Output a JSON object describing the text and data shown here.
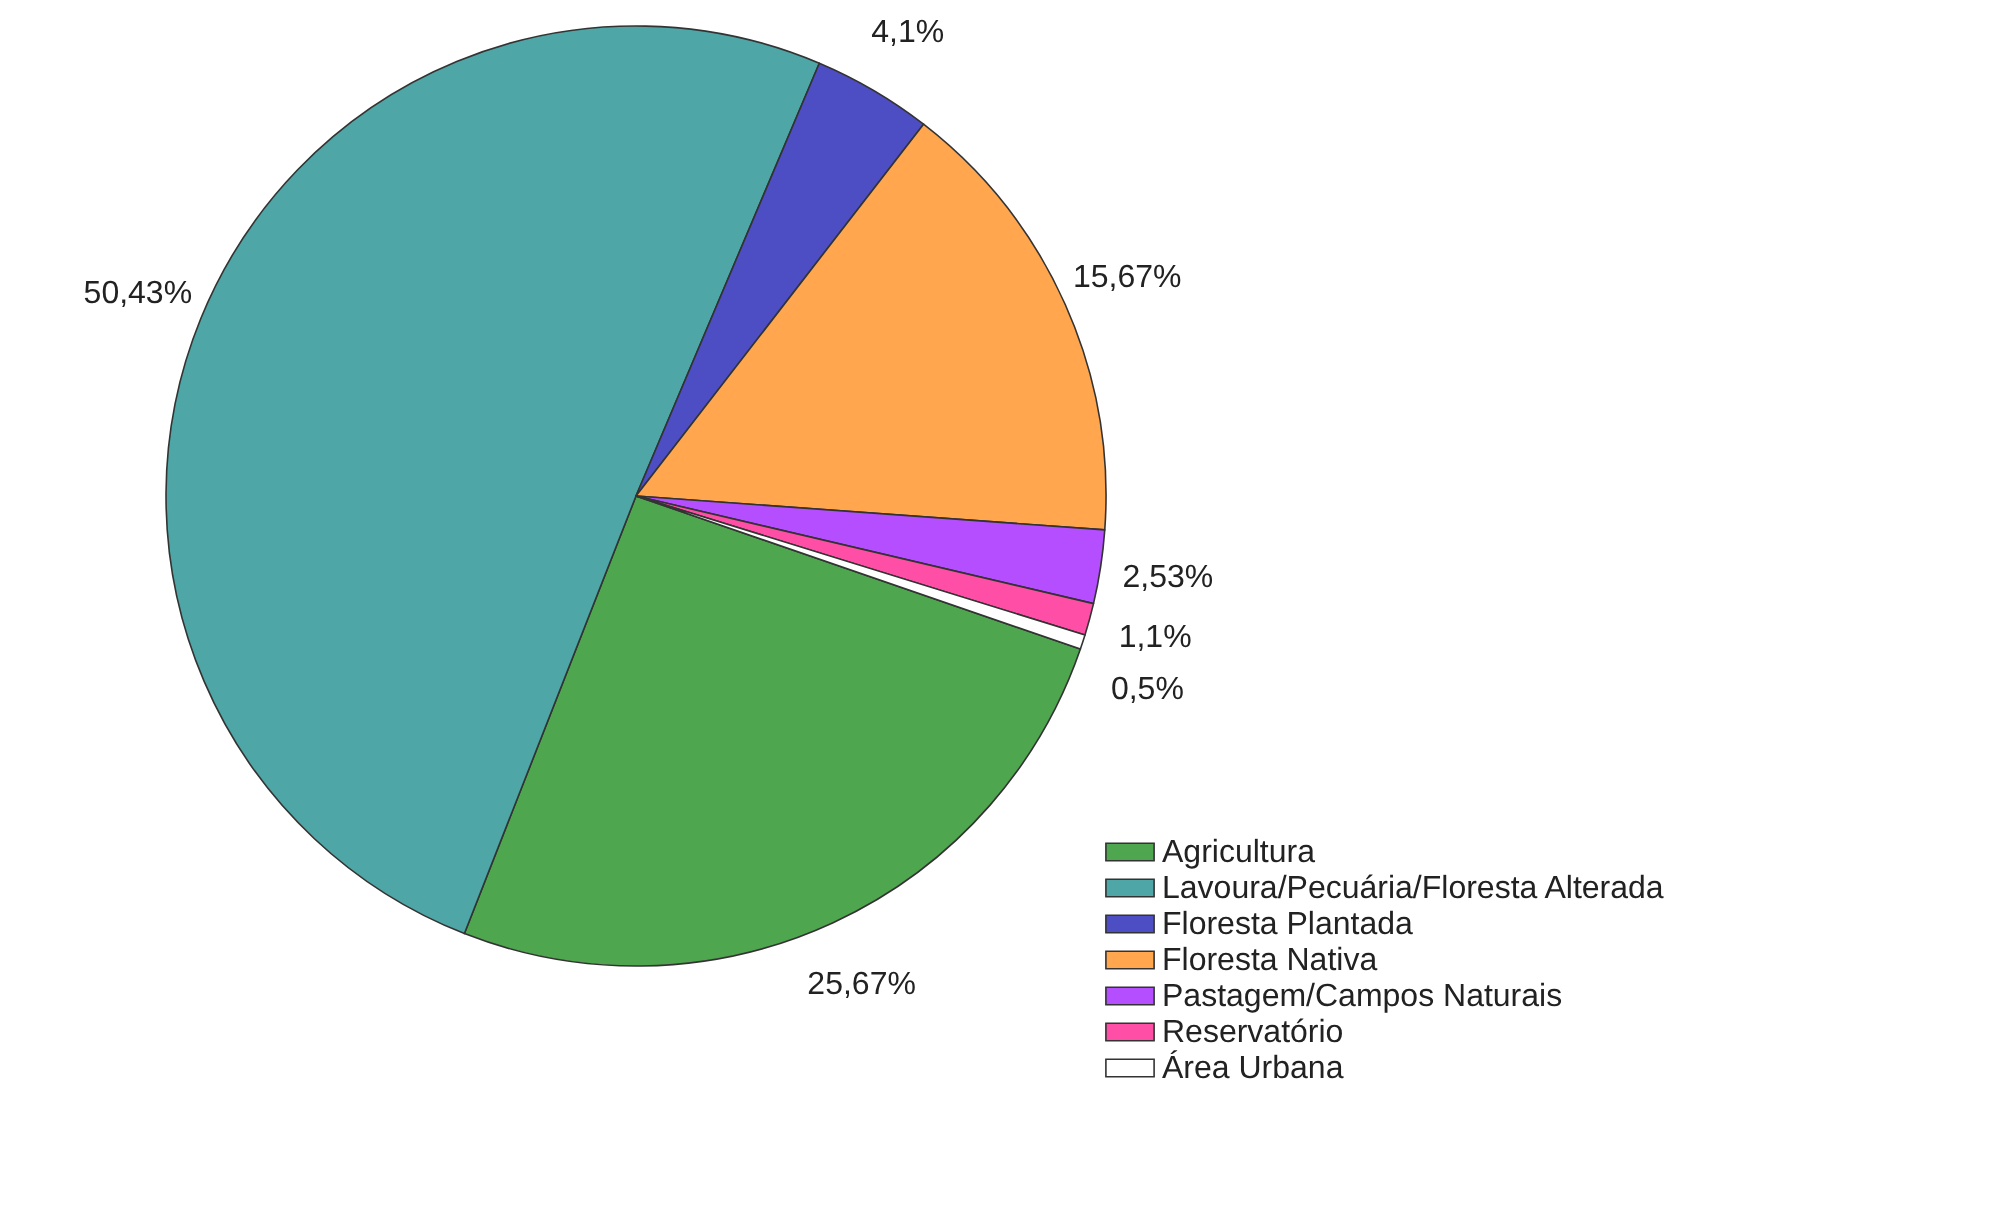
{
  "chart_data": {
    "type": "pie",
    "categories": [
      "Agricultura",
      "Lavoura/Pecuária/Floresta Alterada",
      "Floresta Plantada",
      "Floresta Nativa",
      "Pastagem/Campos Naturais",
      "Reservatório",
      "Área Urbana"
    ],
    "values": [
      25.67,
      50.43,
      4.1,
      15.67,
      2.53,
      1.1,
      0.5
    ],
    "colors": [
      "#4ea64e",
      "#4ea6a6",
      "#4e4ec4",
      "#ffa64e",
      "#b44eff",
      "#ff4ea6",
      "#ffffff"
    ],
    "value_labels": [
      "25,67%",
      "50,43%",
      "4,1%",
      "15,67%",
      "2,53%",
      "1,1%",
      "0,5%"
    ],
    "legend": "bottom right"
  }
}
